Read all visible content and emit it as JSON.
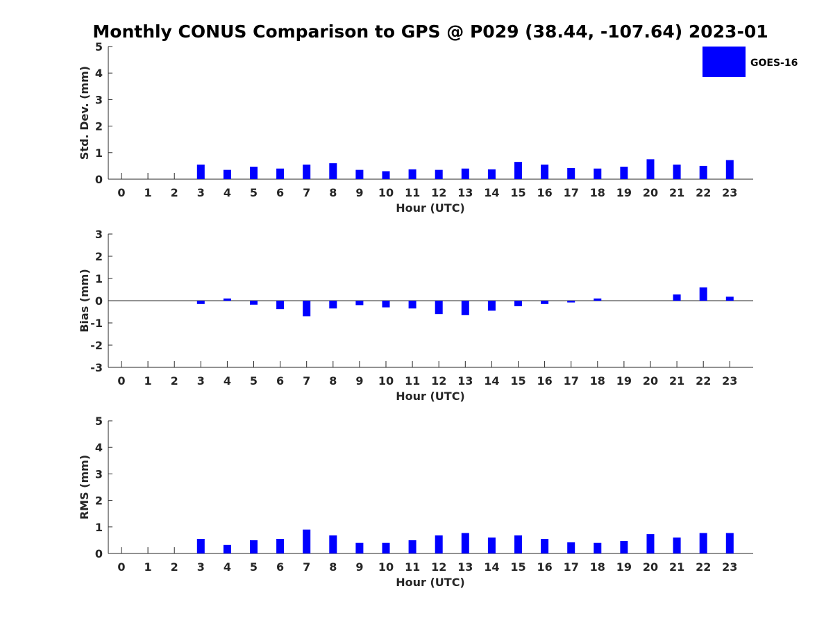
{
  "title": "Monthly CONUS Comparison to GPS @ P029 (38.44, -107.64) 2023-01",
  "colors": {
    "bar": "#0000ff",
    "axis": "#262626"
  },
  "chart_data": [
    {
      "type": "bar",
      "ylabel": "Std. Dev. (mm)",
      "xlabel": "Hour (UTC)",
      "ylim": [
        0,
        5
      ],
      "yticks": [
        "0",
        "1",
        "2",
        "3",
        "4",
        "5"
      ],
      "categories": [
        "0",
        "1",
        "2",
        "3",
        "4",
        "5",
        "6",
        "7",
        "8",
        "9",
        "10",
        "11",
        "12",
        "13",
        "14",
        "15",
        "16",
        "17",
        "18",
        "19",
        "20",
        "21",
        "22",
        "23"
      ],
      "legend": {
        "position": "top-right",
        "entries": [
          "GOES-16"
        ]
      },
      "series": [
        {
          "name": "GOES-16",
          "values": [
            null,
            null,
            null,
            0.55,
            0.35,
            0.47,
            0.4,
            0.55,
            0.6,
            0.35,
            0.3,
            0.37,
            0.35,
            0.4,
            0.37,
            0.65,
            0.55,
            0.42,
            0.4,
            0.47,
            0.75,
            0.55,
            0.5,
            0.72
          ]
        }
      ]
    },
    {
      "type": "bar",
      "ylabel": "Bias (mm)",
      "xlabel": "Hour (UTC)",
      "ylim": [
        -3,
        3
      ],
      "yticks": [
        "-3",
        "-2",
        "-1",
        "0",
        "1",
        "2",
        "3"
      ],
      "categories": [
        "0",
        "1",
        "2",
        "3",
        "4",
        "5",
        "6",
        "7",
        "8",
        "9",
        "10",
        "11",
        "12",
        "13",
        "14",
        "15",
        "16",
        "17",
        "18",
        "19",
        "20",
        "21",
        "22",
        "23"
      ],
      "series": [
        {
          "name": "GOES-16",
          "values": [
            null,
            null,
            null,
            -0.15,
            0.1,
            -0.18,
            -0.38,
            -0.7,
            -0.35,
            -0.2,
            -0.3,
            -0.35,
            -0.6,
            -0.65,
            -0.45,
            -0.25,
            -0.15,
            -0.08,
            0.1,
            0.0,
            0.0,
            0.28,
            0.6,
            0.18
          ]
        }
      ]
    },
    {
      "type": "bar",
      "ylabel": "RMS (mm)",
      "xlabel": "Hour (UTC)",
      "ylim": [
        0,
        5
      ],
      "yticks": [
        "0",
        "1",
        "2",
        "3",
        "4",
        "5"
      ],
      "categories": [
        "0",
        "1",
        "2",
        "3",
        "4",
        "5",
        "6",
        "7",
        "8",
        "9",
        "10",
        "11",
        "12",
        "13",
        "14",
        "15",
        "16",
        "17",
        "18",
        "19",
        "20",
        "21",
        "22",
        "23"
      ],
      "series": [
        {
          "name": "GOES-16",
          "values": [
            null,
            null,
            null,
            0.55,
            0.32,
            0.5,
            0.55,
            0.9,
            0.68,
            0.4,
            0.4,
            0.5,
            0.68,
            0.77,
            0.6,
            0.68,
            0.55,
            0.42,
            0.4,
            0.47,
            0.73,
            0.6,
            0.77,
            0.77
          ]
        }
      ]
    }
  ]
}
